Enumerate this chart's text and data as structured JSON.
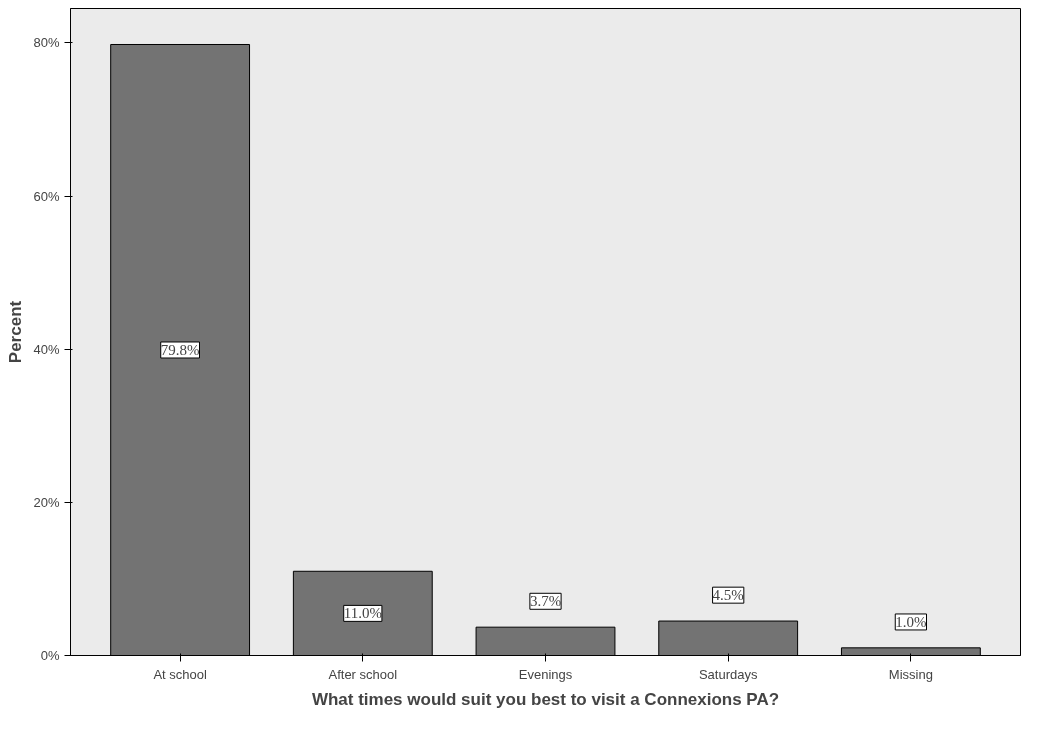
{
  "chart_data": {
    "type": "bar",
    "xlabel": "What times would suit you best to visit a Connexions PA?",
    "ylabel": "Percent",
    "categories": [
      "At school",
      "After school",
      "Evenings",
      "Saturdays",
      "Missing"
    ],
    "values": [
      79.8,
      11.0,
      3.7,
      4.5,
      1.0
    ],
    "value_labels": [
      "79.8%",
      "11.0%",
      "3.7%",
      "4.5%",
      "1.0%"
    ],
    "color": "#737373",
    "ylim": [
      0,
      84.5
    ],
    "yticks": [
      {
        "value": 0,
        "label": "0%"
      },
      {
        "value": 20,
        "label": "20%"
      },
      {
        "value": 40,
        "label": "40%"
      },
      {
        "value": 60,
        "label": "60%"
      },
      {
        "value": 80,
        "label": "80%"
      }
    ],
    "grid": false
  }
}
